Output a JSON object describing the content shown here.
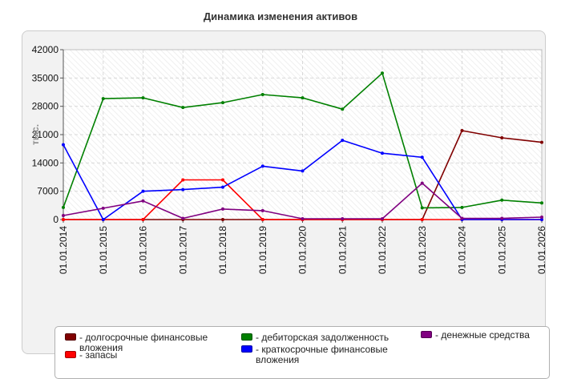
{
  "page_title": "Динамика изменения активов",
  "chart_data": {
    "type": "line",
    "title": "Динамика изменения активов",
    "ylabel": "тыс.",
    "xlabel": "",
    "ylim": [
      0,
      42000
    ],
    "yticks": [
      "0",
      "7000",
      "14000",
      "21000",
      "28000",
      "35000",
      "42000"
    ],
    "categories": [
      "01.01.2014",
      "01.01.2015",
      "01.01.2016",
      "01.01.2017",
      "01.01.2018",
      "01.01.2019",
      "01.01.2020",
      "01.01.2021",
      "01.01.2022",
      "01.01.2023",
      "01.01.2024",
      "01.01.2025",
      "01.01.2026"
    ],
    "grid": true,
    "legend_position": "bottom",
    "series": [
      {
        "name": "долгосрочные финансовые вложения",
        "color": "#800000",
        "values": [
          0,
          0,
          0,
          0,
          0,
          0,
          0,
          0,
          0,
          0,
          22000,
          20200,
          19100
        ]
      },
      {
        "name": "запасы",
        "color": "#ff0000",
        "values": [
          0,
          0,
          0,
          9800,
          9800,
          0,
          0,
          0,
          0,
          0,
          0,
          0,
          0
        ]
      },
      {
        "name": "дебиторская задолженность",
        "color": "#008000",
        "values": [
          3000,
          29900,
          30100,
          27700,
          28900,
          30900,
          30100,
          27300,
          36200,
          2900,
          3000,
          4800,
          4100
        ]
      },
      {
        "name": "краткосрочные финансовые вложения",
        "color": "#0000ff",
        "values": [
          18500,
          0,
          7000,
          7400,
          8000,
          13200,
          12000,
          19600,
          16400,
          15400,
          0,
          0,
          0
        ]
      },
      {
        "name": "денежные средства",
        "color": "#800080",
        "values": [
          1000,
          2800,
          4600,
          300,
          2600,
          2200,
          200,
          200,
          200,
          9000,
          300,
          300,
          600
        ]
      }
    ]
  }
}
